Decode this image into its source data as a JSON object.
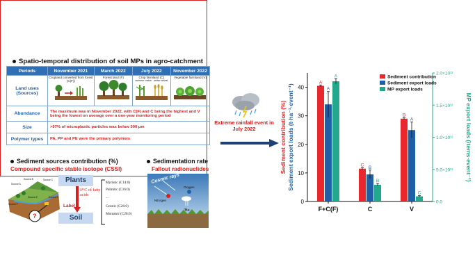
{
  "left_panel": {
    "title": "Spatio-temporal distribution of soil MPs in agro-catchment",
    "table": {
      "header": [
        "Periods",
        "November 2021",
        "March 2022",
        "July 2022",
        "November 2022"
      ],
      "land_uses_label": "Land uses (Sources)",
      "land_uses": [
        "Cropland converted from forest (C(F))",
        "Forest land (F)",
        "Crop farmland (C)",
        "Vegetable farmland (V)"
      ],
      "crop_sublabels": [
        "summer maize",
        "winter wheat"
      ],
      "abundance_label": "Abundance",
      "abundance_text": "The maximum was in November 2022, with C(F) and C being the highest and V being the lowest on average over a one-year monitoring period",
      "size_label": "Size",
      "size_text": ">97% of microplastic particles was below 500 μm",
      "polymer_label": "Polymer types",
      "polymer_text": "PA, PP and PE were the primary polymers"
    },
    "sources": {
      "title": "Sediment sources contribution (%)",
      "subtitle": "Compound specific stable isotope (CSSI)",
      "plants": "Plants",
      "isotope": "δ¹³C of fatty acids",
      "label": "Label",
      "soil": "Soil",
      "fatty_acids": [
        "Myristic (C14:0)",
        "Palmitic (C16:0)",
        "...",
        "Cerotic (C26:0)",
        "Montanic (C28:0)"
      ],
      "source_labels": [
        "Source A",
        "Source B",
        "Source C",
        "Source D",
        "Source E",
        "Source F"
      ]
    },
    "sedimentation": {
      "title": "Sedimentation rate",
      "subtitle": "Fallout radionuclides",
      "cosmic": "Cosmic rays",
      "nitrogen": "Nitrogen",
      "oxygen": "Oxygen",
      "be": "⁷Be"
    }
  },
  "event_text": "Extreme rainfall event in July 2022",
  "chart_data": {
    "type": "bar",
    "categories": [
      "F+C(F)",
      "C",
      "V"
    ],
    "ylabel_left_red": "Sediment contribution (%)",
    "ylabel_left_blue": "Sediment export loads (t·ha⁻¹·event⁻¹)",
    "ylabel_right": "MP export loads (items·event⁻¹)",
    "ylim_left": [
      0,
      45
    ],
    "yticks_left": [
      "0",
      "10",
      "20",
      "30",
      "40"
    ],
    "yticks_right": [
      "0.0",
      "5.0×10¹¹",
      "1.0×10¹²",
      "1.5×10¹²",
      "2.0×10¹²"
    ],
    "legend_position": "top-right",
    "series": [
      {
        "name": "Sediment contribution",
        "axis": "left",
        "color": "#e8282c",
        "values": [
          40.5,
          11.5,
          29
        ],
        "errors": [
          0.3,
          0.3,
          0.3
        ],
        "letters": [
          "A",
          "C",
          "B"
        ]
      },
      {
        "name": "Sediment export loads",
        "axis": "left",
        "color": "#1f5fa8",
        "values": [
          34,
          9.5,
          25
        ],
        "errors": [
          4.5,
          1.5,
          2.8
        ],
        "letters": [
          "A",
          "B",
          "A"
        ]
      },
      {
        "name": "MP export loads",
        "axis": "right",
        "color": "#22a88a",
        "values": [
          1870000000000.0,
          260000000000.0,
          80000000000.0
        ],
        "errors": [
          40000000000.0,
          20000000000.0,
          10000000000.0
        ],
        "letters": [
          "A",
          "B",
          "C"
        ],
        "ylim": [
          0,
          2000000000000.0
        ]
      }
    ]
  },
  "colors": {
    "accent_red": "#d62020",
    "header_blue": "#2e6fb5",
    "green": "#22a88a"
  }
}
